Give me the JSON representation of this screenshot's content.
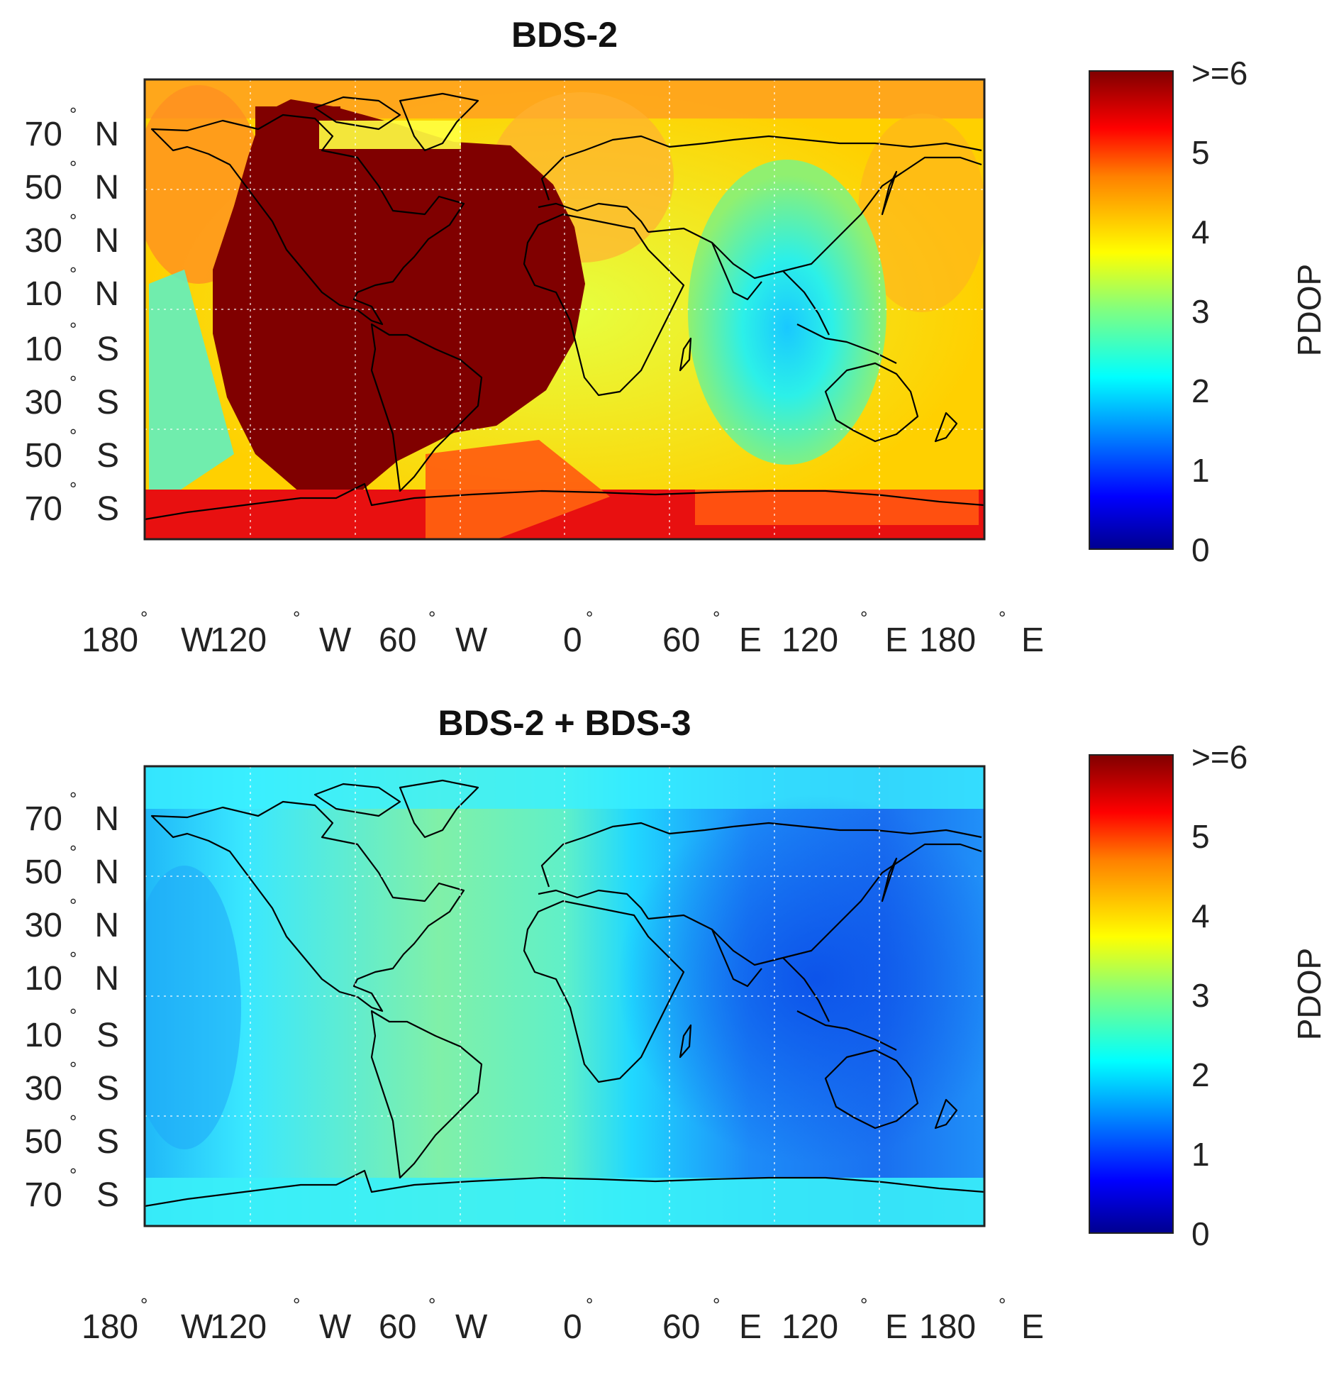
{
  "panels": [
    {
      "title": "BDS-2",
      "colorbar_label": "PDOP",
      "colorbar_ticks": [
        "0",
        "1",
        "2",
        "3",
        "4",
        "5",
        ">=6"
      ],
      "lat_ticks": [
        {
          "num": "70",
          "hemi": "N"
        },
        {
          "num": "50",
          "hemi": "N"
        },
        {
          "num": "30",
          "hemi": "N"
        },
        {
          "num": "10",
          "hemi": "N"
        },
        {
          "num": "10",
          "hemi": "S"
        },
        {
          "num": "30",
          "hemi": "S"
        },
        {
          "num": "50",
          "hemi": "S"
        },
        {
          "num": "70",
          "hemi": "S"
        }
      ],
      "lon_ticks": [
        {
          "num": "180",
          "hemi": "W"
        },
        {
          "num": "120",
          "hemi": "W"
        },
        {
          "num": "60",
          "hemi": "W"
        },
        {
          "num": "0",
          "hemi": ""
        },
        {
          "num": "60",
          "hemi": "E"
        },
        {
          "num": "120",
          "hemi": "E"
        },
        {
          "num": "180",
          "hemi": "E"
        }
      ]
    },
    {
      "title": "BDS-2 + BDS-3",
      "colorbar_label": "PDOP",
      "colorbar_ticks": [
        "0",
        "1",
        "2",
        "3",
        "4",
        "5",
        ">=6"
      ],
      "lat_ticks": [
        {
          "num": "70",
          "hemi": "N"
        },
        {
          "num": "50",
          "hemi": "N"
        },
        {
          "num": "30",
          "hemi": "N"
        },
        {
          "num": "10",
          "hemi": "N"
        },
        {
          "num": "10",
          "hemi": "S"
        },
        {
          "num": "30",
          "hemi": "S"
        },
        {
          "num": "50",
          "hemi": "S"
        },
        {
          "num": "70",
          "hemi": "S"
        }
      ],
      "lon_ticks": [
        {
          "num": "180",
          "hemi": "W"
        },
        {
          "num": "120",
          "hemi": "W"
        },
        {
          "num": "60",
          "hemi": "W"
        },
        {
          "num": "0",
          "hemi": ""
        },
        {
          "num": "60",
          "hemi": "E"
        },
        {
          "num": "120",
          "hemi": "E"
        },
        {
          "num": "180",
          "hemi": "E"
        }
      ]
    }
  ],
  "colors": {
    "jet": [
      "#00008f",
      "#0000ff",
      "#0080ff",
      "#00ffff",
      "#80ff80",
      "#ffff00",
      "#ff8000",
      "#ff0000",
      "#800000"
    ],
    "coastline": "#000000",
    "grid": "#ffffff"
  }
}
